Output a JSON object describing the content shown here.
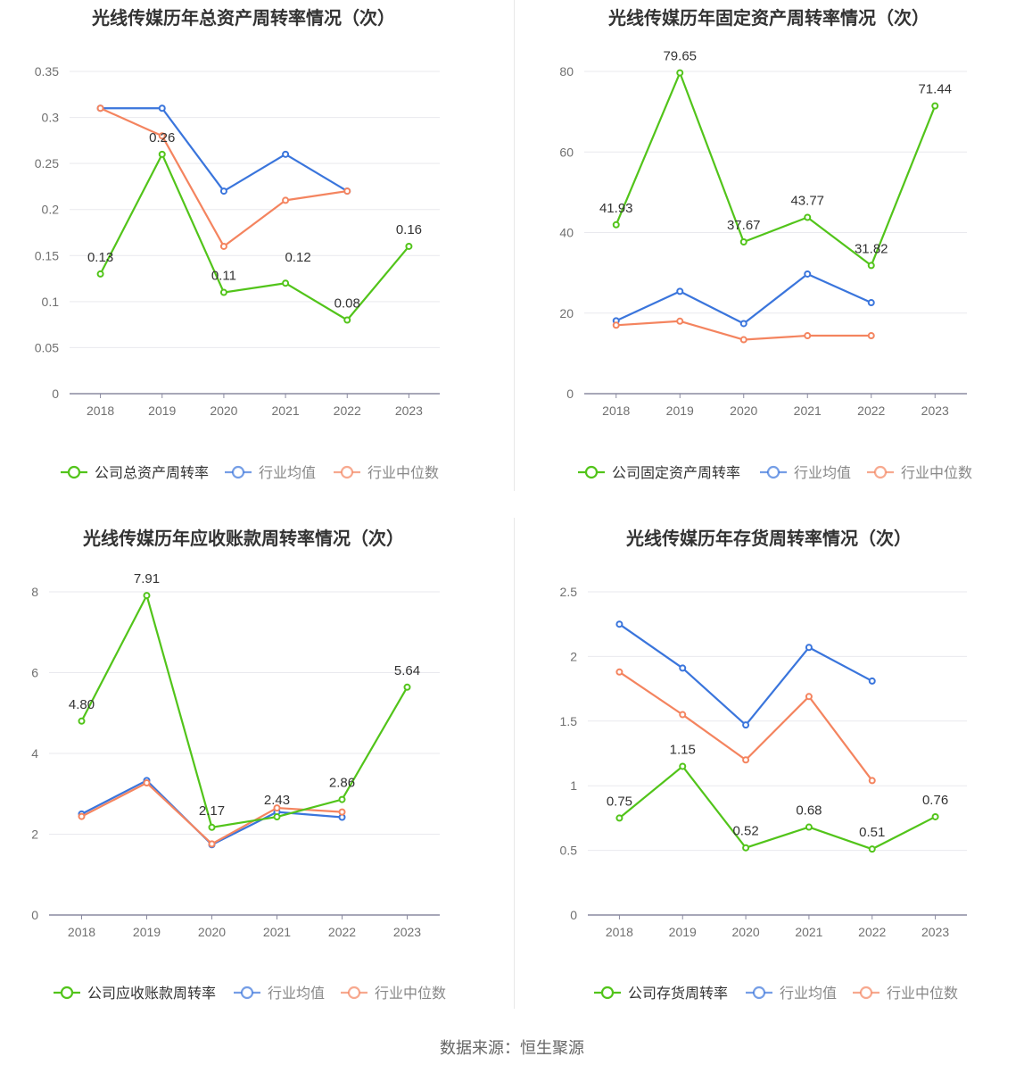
{
  "colors": {
    "company": "#52c41a",
    "industry_avg": "#3a75dc",
    "industry_median": "#f4845f",
    "grid": "#e9e9ee",
    "axis": "#8a8aa0",
    "tick": "#707070",
    "title": "#333333"
  },
  "footer": {
    "source": "数据来源：恒生聚源"
  },
  "chart_data": [
    {
      "type": "line",
      "title": "光线传媒历年总资产周转率情况（次）",
      "categories": [
        "2018",
        "2019",
        "2020",
        "2021",
        "2022",
        "2023"
      ],
      "ylim": [
        0,
        0.35
      ],
      "yticks": [
        0,
        0.05,
        0.1,
        0.15,
        0.2,
        0.25,
        0.3,
        0.35
      ],
      "ytick_labels": [
        "0",
        "0.05",
        "0.1",
        "0.15",
        "0.2",
        "0.25",
        "0.3",
        "0.35"
      ],
      "series": [
        {
          "key": "company",
          "name": "公司总资产周转率",
          "values": [
            0.13,
            0.26,
            0.11,
            0.12,
            0.08,
            0.16
          ],
          "labels": [
            "0.13",
            "0.26",
            "0.11",
            "0.12",
            "0.08",
            "0.16"
          ]
        },
        {
          "key": "industry_avg",
          "name": "行业均值",
          "values": [
            0.31,
            0.31,
            0.22,
            0.26,
            0.22,
            null
          ]
        },
        {
          "key": "industry_median",
          "name": "行业中位数",
          "values": [
            0.31,
            0.28,
            0.16,
            0.21,
            0.22,
            null
          ]
        }
      ]
    },
    {
      "type": "line",
      "title": "光线传媒历年固定资产周转率情况（次）",
      "categories": [
        "2018",
        "2019",
        "2020",
        "2021",
        "2022",
        "2023"
      ],
      "ylim": [
        0,
        80
      ],
      "yticks": [
        0,
        20,
        40,
        60,
        80
      ],
      "ytick_labels": [
        "0",
        "20",
        "40",
        "60",
        "80"
      ],
      "series": [
        {
          "key": "company",
          "name": "公司固定资产周转率",
          "values": [
            41.93,
            79.65,
            37.67,
            43.77,
            31.82,
            71.44
          ],
          "labels": [
            "41.93",
            "79.65",
            "37.67",
            "43.77",
            "31.82",
            "71.44"
          ]
        },
        {
          "key": "industry_avg",
          "name": "行业均值",
          "values": [
            18.1,
            25.4,
            17.4,
            29.7,
            22.6,
            null
          ]
        },
        {
          "key": "industry_median",
          "name": "行业中位数",
          "values": [
            17.0,
            18.0,
            13.4,
            14.4,
            14.4,
            null
          ]
        }
      ]
    },
    {
      "type": "line",
      "title": "光线传媒历年应收账款周转率情况（次）",
      "categories": [
        "2018",
        "2019",
        "2020",
        "2021",
        "2022",
        "2023"
      ],
      "ylim": [
        0,
        8
      ],
      "yticks": [
        0,
        2,
        4,
        6,
        8
      ],
      "ytick_labels": [
        "0",
        "2",
        "4",
        "6",
        "8"
      ],
      "series": [
        {
          "key": "company",
          "name": "公司应收账款周转率",
          "values": [
            4.8,
            7.91,
            2.17,
            2.43,
            2.86,
            5.64
          ],
          "labels": [
            "4.80",
            "7.91",
            "2.17",
            "2.43",
            "2.86",
            "5.64"
          ]
        },
        {
          "key": "industry_avg",
          "name": "行业均值",
          "values": [
            2.5,
            3.33,
            1.74,
            2.55,
            2.42,
            null
          ]
        },
        {
          "key": "industry_median",
          "name": "行业中位数",
          "values": [
            2.44,
            3.27,
            1.76,
            2.65,
            2.55,
            null
          ]
        }
      ]
    },
    {
      "type": "line",
      "title": "光线传媒历年存货周转率情况（次）",
      "categories": [
        "2018",
        "2019",
        "2020",
        "2021",
        "2022",
        "2023"
      ],
      "ylim": [
        0,
        2.5
      ],
      "yticks": [
        0,
        0.5,
        1,
        1.5,
        2,
        2.5
      ],
      "ytick_labels": [
        "0",
        "0.5",
        "1",
        "1.5",
        "2",
        "2.5"
      ],
      "series": [
        {
          "key": "company",
          "name": "公司存货周转率",
          "values": [
            0.75,
            1.15,
            0.52,
            0.68,
            0.51,
            0.76
          ],
          "labels": [
            "0.75",
            "1.15",
            "0.52",
            "0.68",
            "0.51",
            "0.76"
          ]
        },
        {
          "key": "industry_avg",
          "name": "行业均值",
          "values": [
            2.25,
            1.91,
            1.47,
            2.07,
            1.81,
            null
          ]
        },
        {
          "key": "industry_median",
          "name": "行业中位数",
          "values": [
            1.88,
            1.55,
            1.2,
            1.69,
            1.04,
            null
          ]
        }
      ]
    }
  ]
}
